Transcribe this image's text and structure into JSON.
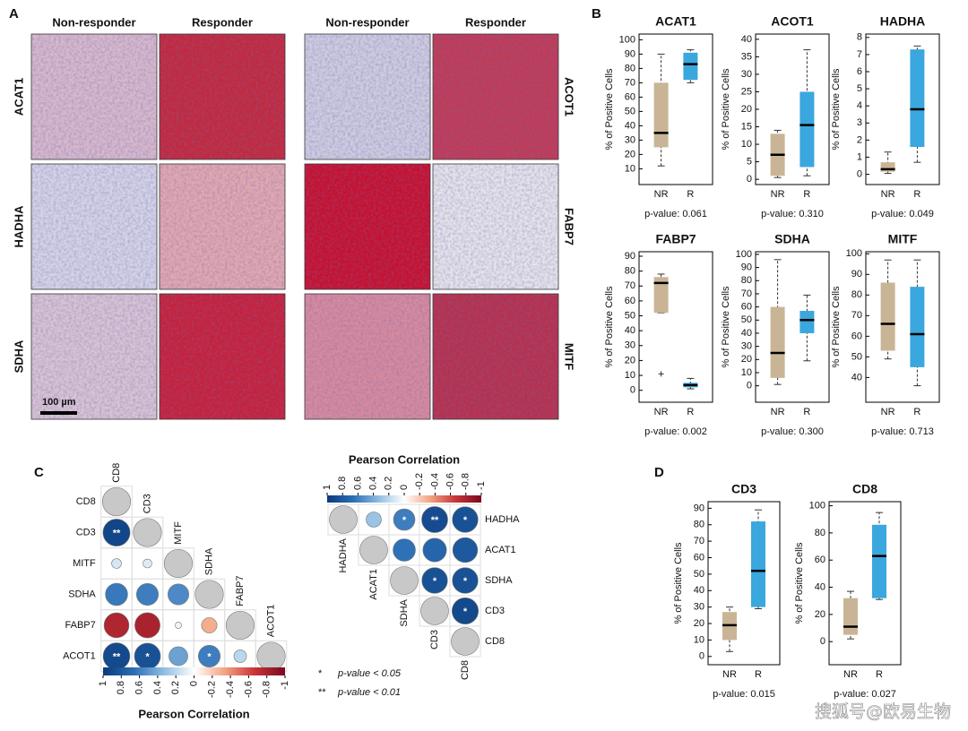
{
  "panel_labels": [
    "A",
    "B",
    "C",
    "D"
  ],
  "histology": {
    "columns": [
      "Non-responder",
      "Responder",
      "Non-responder",
      "Responder"
    ],
    "rows_left": [
      "ACAT1",
      "HADHA",
      "SDHA"
    ],
    "rows_right": [
      "ACOT1",
      "FABP7",
      "MITF"
    ],
    "scale_bar": "100 µm"
  },
  "chart_data": [
    {
      "type": "box",
      "title": "ACAT1",
      "y_label": "% of Positive Cells",
      "categories": [
        "NR",
        "R"
      ],
      "colors": [
        "#c9b596",
        "#3aa7de"
      ],
      "boxes": [
        [
          12,
          25,
          35,
          70,
          90
        ],
        [
          70,
          72,
          83,
          91,
          93
        ]
      ],
      "ylim": [
        -1,
        104
      ],
      "yticks": [
        10,
        20,
        30,
        40,
        50,
        60,
        70,
        80,
        90,
        100
      ],
      "caption": "p-value: 0.061"
    },
    {
      "type": "box",
      "title": "ACOT1",
      "y_label": "% of Positive Cells",
      "categories": [
        "NR",
        "R"
      ],
      "colors": [
        "#c9b596",
        "#3aa7de"
      ],
      "boxes": [
        [
          0.5,
          1,
          7,
          13,
          14
        ],
        [
          1,
          3.5,
          15.5,
          25,
          37
        ]
      ],
      "ylim": [
        -1.5,
        41.5
      ],
      "yticks": [
        0,
        5,
        10,
        15,
        20,
        25,
        30,
        35,
        40
      ],
      "caption": "p-value: 0.310"
    },
    {
      "type": "box",
      "title": "HADHA",
      "y_label": "% of Positive Cells",
      "categories": [
        "NR",
        "R"
      ],
      "colors": [
        "#c9b596",
        "#3aa7de"
      ],
      "boxes": [
        [
          0.05,
          0.15,
          0.3,
          0.7,
          1.3
        ],
        [
          0.7,
          1.6,
          3.8,
          7.3,
          7.5
        ]
      ],
      "ylim": [
        -0.6,
        8.2
      ],
      "yticks": [
        0,
        1,
        2,
        3,
        4,
        5,
        6,
        7,
        8
      ],
      "caption": "p-value: 0.049"
    },
    {
      "type": "box",
      "title": "FABP7",
      "y_label": "% of Positive Cells",
      "categories": [
        "NR",
        "R"
      ],
      "colors": [
        "#c9b596",
        "#3aa7de"
      ],
      "boxes": [
        [
          52,
          52,
          72,
          76,
          78
        ],
        [
          1,
          2,
          3.5,
          5,
          8
        ]
      ],
      "outliers": [
        [
          11
        ],
        []
      ],
      "ylim": [
        -8,
        93
      ],
      "yticks": [
        0,
        10,
        20,
        30,
        40,
        50,
        60,
        70,
        80,
        90
      ],
      "caption": "p-value: 0.002"
    },
    {
      "type": "box",
      "title": "SDHA",
      "y_label": "% of Positive Cells",
      "categories": [
        "NR",
        "R"
      ],
      "colors": [
        "#c9b596",
        "#3aa7de"
      ],
      "boxes": [
        [
          1,
          6,
          25,
          60,
          96
        ],
        [
          19,
          40,
          50,
          57,
          69
        ]
      ],
      "ylim": [
        -12.5,
        102
      ],
      "yticks": [
        0,
        10,
        20,
        30,
        40,
        50,
        60,
        70,
        80,
        90,
        100
      ],
      "caption": "p-value: 0.300"
    },
    {
      "type": "box",
      "title": "MITF",
      "y_label": "% of Positive Cells",
      "categories": [
        "NR",
        "R"
      ],
      "colors": [
        "#c9b596",
        "#3aa7de"
      ],
      "boxes": [
        [
          49,
          53,
          66,
          86,
          97
        ],
        [
          36,
          45,
          61,
          84,
          97
        ]
      ],
      "ylim": [
        28,
        101
      ],
      "yticks": [
        40,
        50,
        60,
        70,
        80,
        90,
        100
      ],
      "caption": "p-value: 0.713"
    },
    {
      "type": "box",
      "title": "CD3",
      "y_label": "% of Positive Cells",
      "categories": [
        "NR",
        "R"
      ],
      "colors": [
        "#c9b596",
        "#3aa7de"
      ],
      "boxes": [
        [
          3,
          10,
          19,
          27,
          30
        ],
        [
          29,
          30,
          52,
          82,
          89
        ]
      ],
      "ylim": [
        -5,
        94
      ],
      "yticks": [
        0,
        10,
        20,
        30,
        40,
        50,
        60,
        70,
        80,
        90
      ],
      "caption": "p-value: 0.015"
    },
    {
      "type": "box",
      "title": "CD8",
      "y_label": "% of Positive Cells",
      "categories": [
        "NR",
        "R"
      ],
      "colors": [
        "#c9b596",
        "#3aa7de"
      ],
      "boxes": [
        [
          2,
          5,
          11,
          32,
          37
        ],
        [
          31,
          32,
          63,
          86,
          95
        ]
      ],
      "ylim": [
        -17,
        103
      ],
      "yticks": [
        0,
        20,
        40,
        60,
        80,
        100
      ],
      "caption": "p-value: 0.027"
    },
    {
      "type": "correlation",
      "layout": "lower",
      "labels": [
        "CD8",
        "CD3",
        "MITF",
        "SDHA",
        "FABP7",
        "ACOT1"
      ],
      "values": [
        [
          1,
          null,
          null,
          null,
          null,
          null
        ],
        [
          0.92,
          1,
          null,
          null,
          null,
          null
        ],
        [
          0.12,
          0.1,
          1,
          null,
          null,
          null
        ],
        [
          0.62,
          0.6,
          0.55,
          1,
          null,
          null
        ],
        [
          -0.78,
          -0.8,
          0.05,
          -0.3,
          1,
          null
        ],
        [
          0.9,
          0.85,
          0.45,
          0.6,
          0.2,
          1
        ]
      ],
      "stars": [
        [
          null,
          null,
          null,
          null,
          null,
          null
        ],
        [
          "**",
          null,
          null,
          null,
          null,
          null
        ],
        [
          null,
          null,
          null,
          null,
          null,
          null
        ],
        [
          null,
          null,
          null,
          null,
          null,
          null
        ],
        [
          null,
          null,
          null,
          null,
          null,
          null
        ],
        [
          "**",
          "*",
          null,
          "*",
          null,
          null
        ]
      ],
      "diagonal_color": "#c8c8c8",
      "clim": [
        1,
        -1
      ],
      "colors": [
        "#0b3a7a",
        "#2a6db5",
        "#8fbde0",
        "#ffffff",
        "#f3a483",
        "#c8343a",
        "#7a0a1e"
      ],
      "colorbar_ticks": [
        1,
        0.8,
        0.6,
        0.4,
        0.2,
        0,
        -0.2,
        -0.4,
        -0.6,
        -0.8,
        -1
      ],
      "colorbar_title": "Pearson Correlation"
    },
    {
      "type": "correlation",
      "layout": "upper",
      "labels": [
        "HADHA",
        "ACAT1",
        "SDHA",
        "CD3",
        "CD8"
      ],
      "values": [
        [
          1,
          0.3,
          0.6,
          0.88,
          0.85
        ],
        [
          null,
          1,
          0.65,
          0.72,
          0.8
        ],
        [
          null,
          null,
          1,
          0.85,
          0.85
        ],
        [
          null,
          null,
          null,
          1,
          0.9
        ],
        [
          null,
          null,
          null,
          null,
          1
        ]
      ],
      "stars": [
        [
          null,
          null,
          "*",
          "**",
          "*"
        ],
        [
          null,
          null,
          null,
          null,
          null
        ],
        [
          null,
          null,
          null,
          "*",
          "*"
        ],
        [
          null,
          null,
          null,
          null,
          "*"
        ],
        [
          null,
          null,
          null,
          null,
          null
        ]
      ],
      "diagonal_color": "#c8c8c8",
      "clim": [
        1,
        -1
      ],
      "colors": [
        "#0b3a7a",
        "#2a6db5",
        "#8fbde0",
        "#ffffff",
        "#f3a483",
        "#c8343a",
        "#7a0a1e"
      ],
      "colorbar_ticks": [
        1,
        0.8,
        0.6,
        0.4,
        0.2,
        0,
        -0.2,
        -0.4,
        -0.6,
        -0.8,
        -1
      ],
      "colorbar_title": "Pearson Correlation"
    }
  ],
  "significance_notes": [
    {
      "symbol": "*",
      "text": "p-value < 0.05"
    },
    {
      "symbol": "**",
      "text": "p-value < 0.01"
    }
  ],
  "watermark": "搜狐号@欧易生物"
}
